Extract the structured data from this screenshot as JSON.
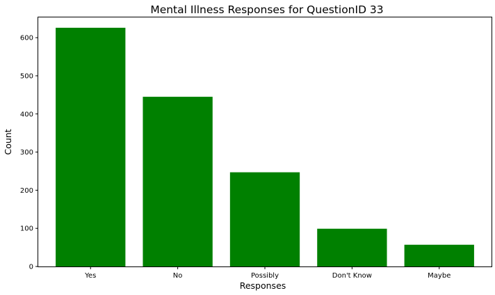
{
  "chart_data": {
    "type": "bar",
    "title": "Mental Illness Responses for QuestionID 33",
    "xlabel": "Responses",
    "ylabel": "Count",
    "categories": [
      "Yes",
      "No",
      "Possibly",
      "Don't Know",
      "Maybe"
    ],
    "values": [
      626,
      445,
      247,
      99,
      57
    ],
    "ylim": [
      0,
      655
    ],
    "yticks": [
      0,
      100,
      200,
      300,
      400,
      500,
      600
    ],
    "bar_color": "#008000",
    "grid": false,
    "legend": "none"
  }
}
